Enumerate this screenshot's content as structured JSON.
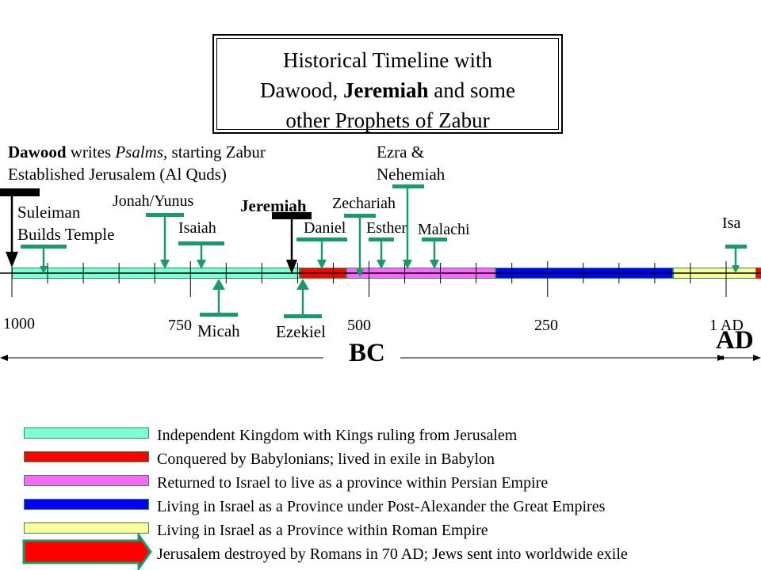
{
  "title": {
    "line1": "Historical Timeline with",
    "line2_a": "Dawood, ",
    "line2_b": "Jeremiah",
    "line2_c": " and some",
    "line3": "other Prophets of Zabur"
  },
  "dawood": {
    "bold": "Dawood",
    "text1": " writes ",
    "italic": "Psalms",
    "text2": ", starting Zabur",
    "line2": "Established Jerusalem (Al Quds)"
  },
  "labels": {
    "suleiman_1": "Suleiman",
    "suleiman_2": "Builds Temple",
    "jonah": "Jonah/Yunus",
    "isaiah": "Isaiah",
    "jeremiah": "Jeremiah",
    "zechariah": "Zechariah",
    "daniel": "Daniel",
    "esther": "Esther",
    "malachi": "Malachi",
    "ezra_1": "Ezra &",
    "ezra_2": "Nehemiah",
    "isa": "Isa",
    "micah": "Micah",
    "ezekiel": "Ezekiel"
  },
  "axis": {
    "ticks": [
      "1000",
      "750",
      "500",
      "250",
      "1 AD"
    ],
    "bc": "BC",
    "ad": "AD"
  },
  "legend": [
    {
      "color": "#7fffd4",
      "text": "Independent Kingdom with Kings ruling from Jerusalem"
    },
    {
      "color": "#ff0000",
      "text": "Conquered by Babylonians; lived in exile in Babylon"
    },
    {
      "color": "#ff66ff",
      "text": "Returned to Israel to live as a province within Persian Empire"
    },
    {
      "color": "#0000ff",
      "text": "Living in Israel as a Province under Post-Alexander the Great Empires"
    },
    {
      "color": "#ffff99",
      "text": "Living in Israel as a Province within Roman Empire"
    },
    {
      "color": "#ff0000",
      "text": "Jerusalem destroyed by Romans in 70 AD; Jews sent into worldwide exile"
    }
  ],
  "colors": {
    "marker": "#1a9a6a",
    "kingdom": "#7fffd4",
    "babylon": "#ff0000",
    "persian": "#ff66ff",
    "greek": "#0000ff",
    "roman": "#ffff99"
  }
}
